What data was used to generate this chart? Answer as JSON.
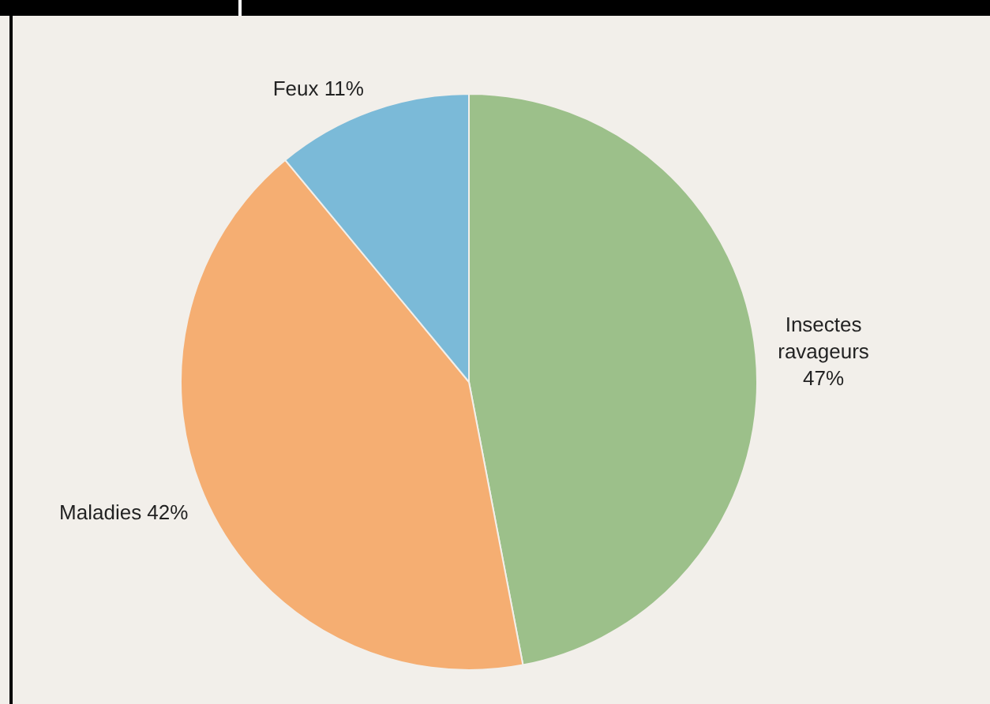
{
  "chart_data": {
    "type": "pie",
    "categories": [
      "Insectes ravageurs",
      "Maladies",
      "Feux"
    ],
    "values": [
      47,
      42,
      11
    ],
    "colors": [
      "#9cc08a",
      "#f5ae72",
      "#7bbad8"
    ],
    "value_labels": [
      "47%",
      "42%",
      "11%"
    ],
    "legend": false
  }
}
